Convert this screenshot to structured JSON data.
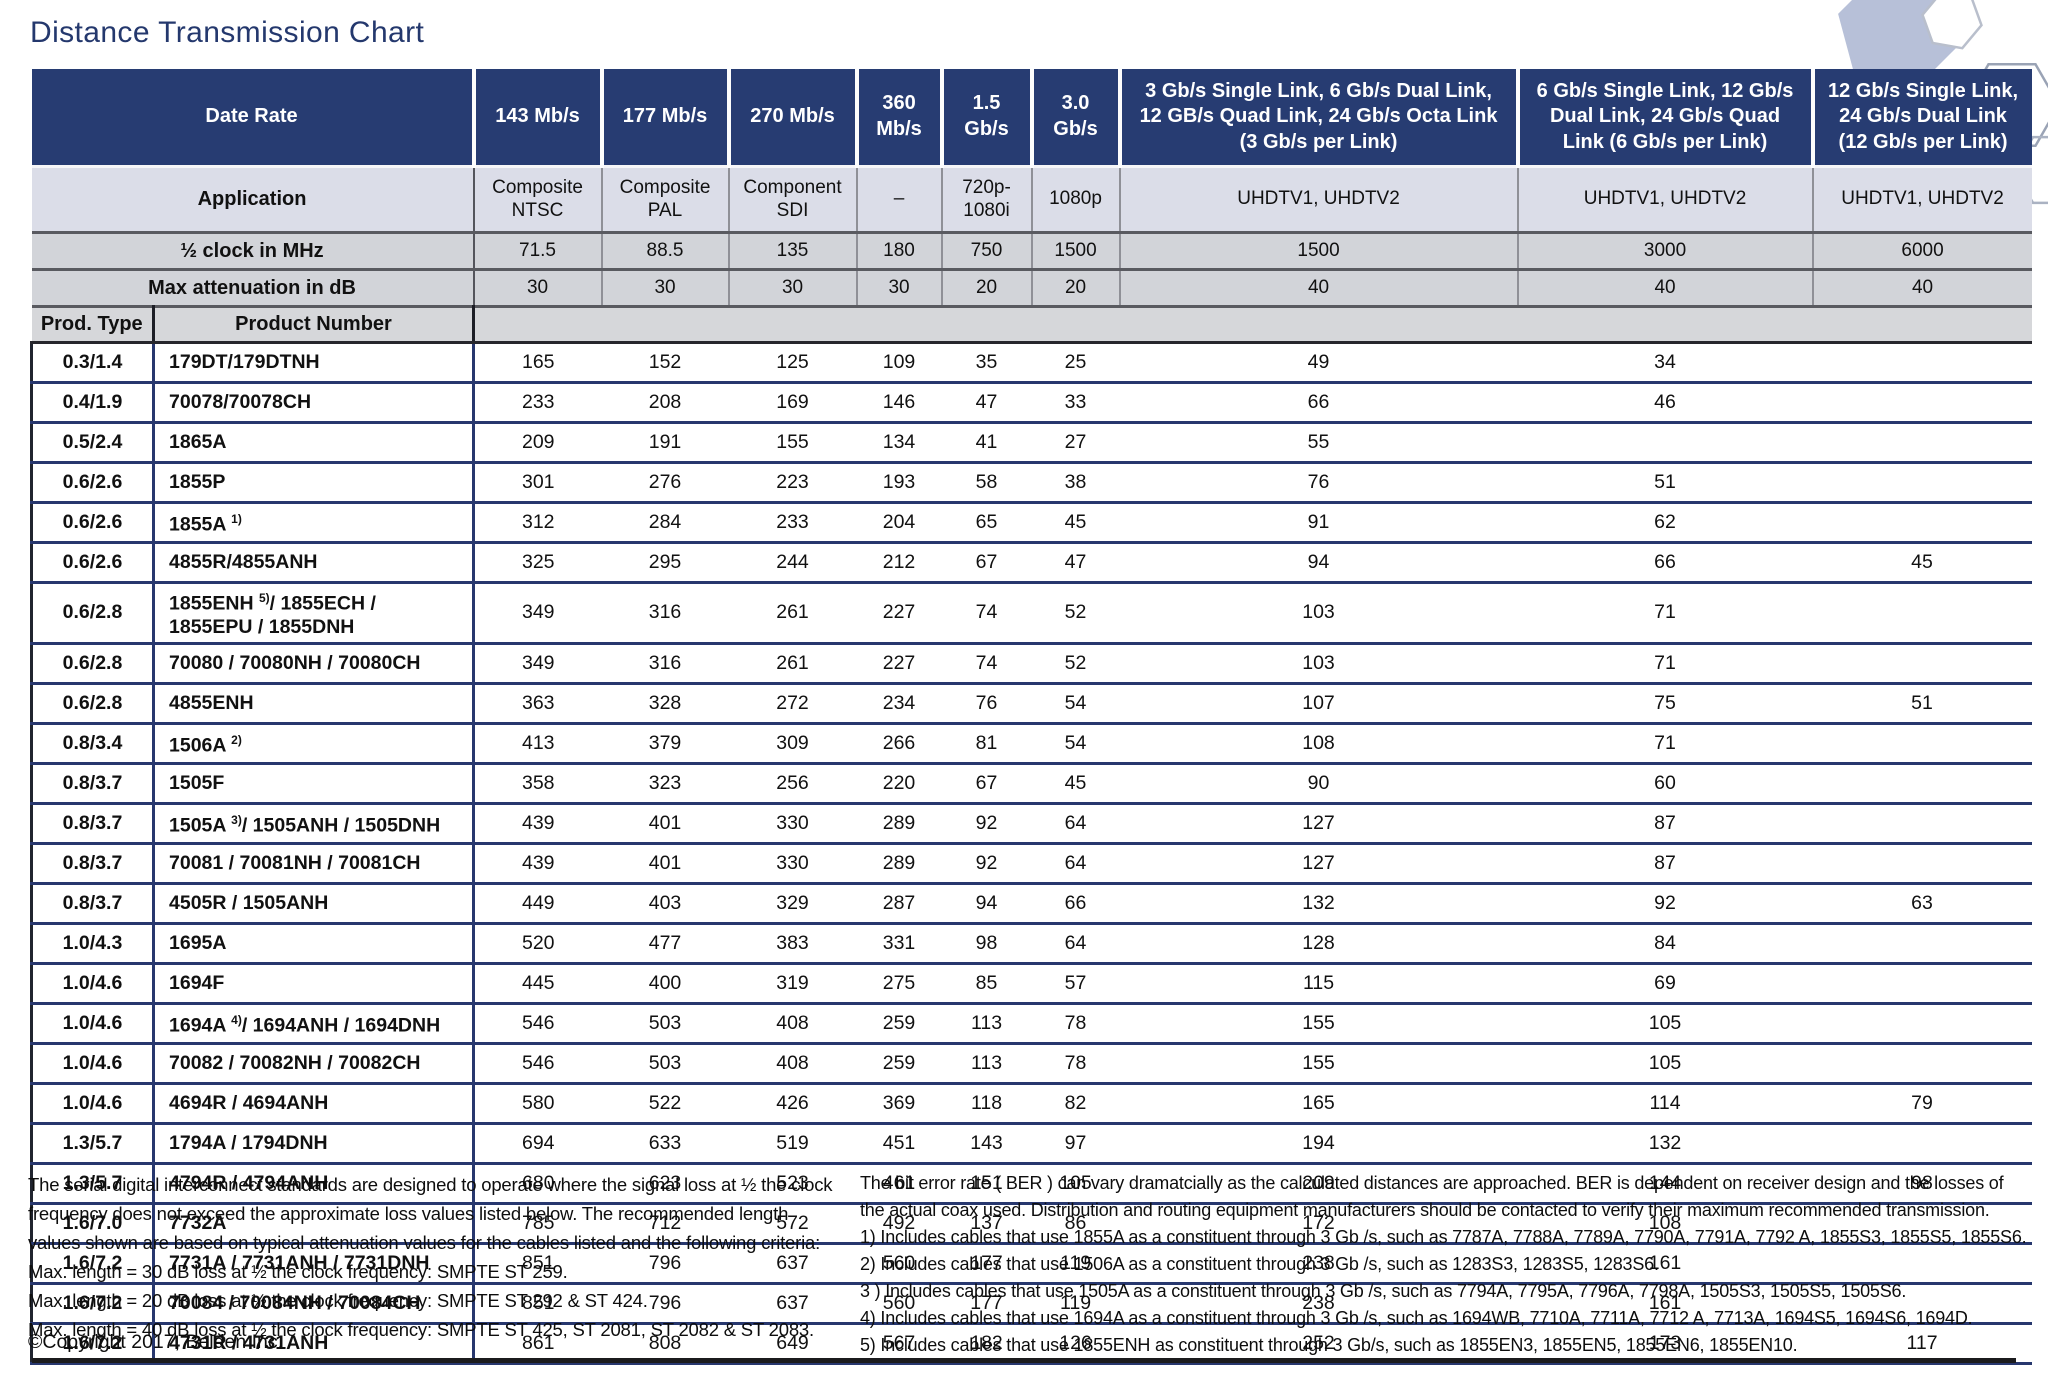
{
  "page": {
    "title": "Distance Transmission Chart"
  },
  "table": {
    "header": {
      "data_rate_label": "Date Rate",
      "application_label": "Application",
      "half_clock_label": "½ clock in MHz",
      "max_attenuation_label": "Max attenuation in dB",
      "prod_type_label": "Prod. Type",
      "product_number_label": "Product Number"
    },
    "rate_columns": [
      {
        "rate": "143 Mb/s",
        "application": "Composite\nNTSC",
        "half_clock": "71.5",
        "max_attenuation": "30"
      },
      {
        "rate": "177 Mb/s",
        "application": "Composite\nPAL",
        "half_clock": "88.5",
        "max_attenuation": "30"
      },
      {
        "rate": "270 Mb/s",
        "application": "Component\nSDI",
        "half_clock": "135",
        "max_attenuation": "30"
      },
      {
        "rate": "360\nMb/s",
        "application": "–",
        "half_clock": "180",
        "max_attenuation": "30"
      },
      {
        "rate": "1.5\nGb/s",
        "application": "720p-\n1080i",
        "half_clock": "750",
        "max_attenuation": "20"
      },
      {
        "rate": "3.0\nGb/s",
        "application": "1080p",
        "half_clock": "1500",
        "max_attenuation": "20"
      },
      {
        "rate": "3 Gb/s Single Link, 6 Gb/s Dual Link,\n12 GB/s Quad Link, 24 Gb/s Octa Link\n(3 Gb/s per Link)",
        "application": "UHDTV1, UHDTV2",
        "half_clock": "1500",
        "max_attenuation": "40"
      },
      {
        "rate": "6 Gb/s Single Link, 12 Gb/s\nDual Link, 24 Gb/s Quad\nLink (6 Gb/s per Link)",
        "application": "UHDTV1, UHDTV2",
        "half_clock": "3000",
        "max_attenuation": "40"
      },
      {
        "rate": "12 Gb/s Single Link,\n24 Gb/s Dual Link\n(12 Gb/s per Link)",
        "application": "UHDTV1, UHDTV2",
        "half_clock": "6000",
        "max_attenuation": "40"
      }
    ],
    "rows": [
      {
        "type": "0.3/1.4",
        "name": "179DT/179DTNH",
        "sup": "",
        "post": "",
        "values": [
          "165",
          "152",
          "125",
          "109",
          "35",
          "25",
          "49",
          "34",
          ""
        ]
      },
      {
        "type": "0.4/1.9",
        "name": "70078/70078CH",
        "sup": "",
        "post": "",
        "values": [
          "233",
          "208",
          "169",
          "146",
          "47",
          "33",
          "66",
          "46",
          ""
        ]
      },
      {
        "type": "0.5/2.4",
        "name": "1865A",
        "sup": "",
        "post": "",
        "values": [
          "209",
          "191",
          "155",
          "134",
          "41",
          "27",
          "55",
          "",
          ""
        ]
      },
      {
        "type": "0.6/2.6",
        "name": "1855P",
        "sup": "",
        "post": "",
        "values": [
          "301",
          "276",
          "223",
          "193",
          "58",
          "38",
          "76",
          "51",
          ""
        ]
      },
      {
        "type": "0.6/2.6",
        "name": "1855A ",
        "sup": "1)",
        "post": "",
        "values": [
          "312",
          "284",
          "233",
          "204",
          "65",
          "45",
          "91",
          "62",
          ""
        ]
      },
      {
        "type": "0.6/2.6",
        "name": "4855R/4855ANH",
        "sup": "",
        "post": "",
        "values": [
          "325",
          "295",
          "244",
          "212",
          "67",
          "47",
          "94",
          "66",
          "45"
        ]
      },
      {
        "type": "0.6/2.8",
        "name": "1855ENH ",
        "sup": "5)",
        "post": "/ 1855ECH /\n1855EPU / 1855DNH",
        "values": [
          "349",
          "316",
          "261",
          "227",
          "74",
          "52",
          "103",
          "71",
          ""
        ]
      },
      {
        "type": "0.6/2.8",
        "name": "70080 / 70080NH / 70080CH",
        "sup": "",
        "post": "",
        "values": [
          "349",
          "316",
          "261",
          "227",
          "74",
          "52",
          "103",
          "71",
          ""
        ]
      },
      {
        "type": "0.6/2.8",
        "name": "4855ENH",
        "sup": "",
        "post": "",
        "values": [
          "363",
          "328",
          "272",
          "234",
          "76",
          "54",
          "107",
          "75",
          "51"
        ]
      },
      {
        "type": "0.8/3.4",
        "name": "1506A ",
        "sup": "2)",
        "post": "",
        "values": [
          "413",
          "379",
          "309",
          "266",
          "81",
          "54",
          "108",
          "71",
          ""
        ]
      },
      {
        "type": "0.8/3.7",
        "name": "1505F",
        "sup": "",
        "post": "",
        "values": [
          "358",
          "323",
          "256",
          "220",
          "67",
          "45",
          "90",
          "60",
          ""
        ]
      },
      {
        "type": "0.8/3.7",
        "name": "1505A ",
        "sup": "3)",
        "post": "/ 1505ANH / 1505DNH",
        "values": [
          "439",
          "401",
          "330",
          "289",
          "92",
          "64",
          "127",
          "87",
          ""
        ]
      },
      {
        "type": "0.8/3.7",
        "name": "70081 / 70081NH / 70081CH",
        "sup": "",
        "post": "",
        "values": [
          "439",
          "401",
          "330",
          "289",
          "92",
          "64",
          "127",
          "87",
          ""
        ]
      },
      {
        "type": "0.8/3.7",
        "name": "4505R / 1505ANH",
        "sup": "",
        "post": "",
        "values": [
          "449",
          "403",
          "329",
          "287",
          "94",
          "66",
          "132",
          "92",
          "63"
        ]
      },
      {
        "type": "1.0/4.3",
        "name": "1695A",
        "sup": "",
        "post": "",
        "values": [
          "520",
          "477",
          "383",
          "331",
          "98",
          "64",
          "128",
          "84",
          ""
        ]
      },
      {
        "type": "1.0/4.6",
        "name": "1694F",
        "sup": "",
        "post": "",
        "values": [
          "445",
          "400",
          "319",
          "275",
          "85",
          "57",
          "115",
          "69",
          ""
        ]
      },
      {
        "type": "1.0/4.6",
        "name": "1694A ",
        "sup": "4)",
        "post": "/ 1694ANH / 1694DNH",
        "values": [
          "546",
          "503",
          "408",
          "259",
          "113",
          "78",
          "155",
          "105",
          ""
        ]
      },
      {
        "type": "1.0/4.6",
        "name": "70082 / 70082NH / 70082CH",
        "sup": "",
        "post": "",
        "values": [
          "546",
          "503",
          "408",
          "259",
          "113",
          "78",
          "155",
          "105",
          ""
        ]
      },
      {
        "type": "1.0/4.6",
        "name": "4694R / 4694ANH",
        "sup": "",
        "post": "",
        "values": [
          "580",
          "522",
          "426",
          "369",
          "118",
          "82",
          "165",
          "114",
          "79"
        ]
      },
      {
        "type": "1.3/5.7",
        "name": "1794A / 1794DNH",
        "sup": "",
        "post": "",
        "values": [
          "694",
          "633",
          "519",
          "451",
          "143",
          "97",
          "194",
          "132",
          ""
        ]
      },
      {
        "type": "1.3/5.7",
        "name": "4794R / 4794ANH",
        "sup": "",
        "post": "",
        "values": [
          "680",
          "623",
          "523",
          "461",
          "151",
          "105",
          "209",
          "144",
          "98"
        ]
      },
      {
        "type": "1.6/7.0",
        "name": "7732A",
        "sup": "",
        "post": "",
        "values": [
          "785",
          "712",
          "572",
          "492",
          "137",
          "86",
          "172",
          "108",
          ""
        ]
      },
      {
        "type": "1.6/7.2",
        "name": "7731A / 7731ANH / 7731DNH",
        "sup": "",
        "post": "",
        "values": [
          "851",
          "796",
          "637",
          "560",
          "177",
          "119",
          "238",
          "161",
          ""
        ]
      },
      {
        "type": "1.6/7.2",
        "name": "70084 / 70084NH / 70084CH",
        "sup": "",
        "post": "",
        "values": [
          "851",
          "796",
          "637",
          "560",
          "177",
          "119",
          "238",
          "161",
          ""
        ]
      },
      {
        "type": "1.6/7.2",
        "name": "4731R / 4731ANH",
        "sup": "",
        "post": "",
        "values": [
          "861",
          "808",
          "649",
          "567",
          "182",
          "126",
          "252",
          "173",
          "117"
        ]
      }
    ]
  },
  "footnotes": {
    "left_lines": [
      "The serial digital interconnect standards are designed to operate where the signal loss at ½ the clock",
      "frequency does not exceed the approximate loss values listed below. The recommended length",
      "values shown are based on typical attenuation values for the cables listed and the following criteria:",
      "Max. length = 30 dB loss at ½ the clock frequency: SMPTE ST 259.",
      "Max. length = 20 dB loss at ½ the clock frequency: SMPTE ST 292 & ST 424.",
      "Max. length = 40 dB loss at ½ the clock frequency: SMPTE ST 425, ST 2081, ST 2082 & ST 2083."
    ],
    "right_lines": [
      "The bit error rate ( BER ) can vary dramatcially as the calculated distances are approached. BER is dependent on receiver design and the losses of",
      "the actual coax used. Distribution and routing equipment manufacturers should be contacted to verify their maximum recommended transmission.",
      "1) Includes cables that use 1855A as a constituent through 3 Gb /s, such as 7787A, 7788A, 7789A, 7790A, 7791A, 7792 A, 1855S3, 1855S5, 1855S6.",
      "2) Includes cables that use 1506A as a constituent through 3 Gb /s, such as 1283S3, 1283S5, 1283S6.",
      "3 ) Includes cables that use 1505A as a constituent through 3 Gb /s, such as 7794A, 7795A, 7796A, 7798A, 1505S3, 1505S5, 1505S6.",
      "4) Includes cables that use 1694A as a constituent through 3 Gb /s, such as 1694WB, 7710A, 7711A, 7712 A, 7713A, 1694S5, 1694S6, 1694D.",
      "5) Includes cables that use 1855ENH as constituent through 3 Gb/s, such as 1855EN3, 1855EN5, 1855EN6, 1855EN10."
    ],
    "copyright": "©Copyright 2017, Belden Inc."
  },
  "colors": {
    "header_navy": "#273c72",
    "application_row_bg": "#dbdde8",
    "gray_row_bg": "#d2d4d9",
    "row_border_navy": "#27376e",
    "title_navy": "#24386d"
  },
  "icons": {
    "hexagon_decoration": "hexagon-cluster"
  }
}
